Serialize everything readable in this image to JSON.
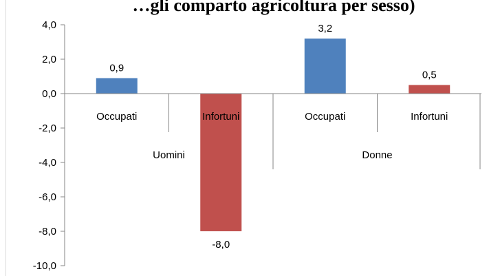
{
  "chart_data": {
    "type": "bar",
    "title": "…gli comparto agricoltura per sesso)",
    "groups": [
      {
        "label": "Uomini",
        "categories": [
          "Occupati",
          "Infortuni"
        ]
      },
      {
        "label": "Donne",
        "categories": [
          "Occupati",
          "Infortuni"
        ]
      }
    ],
    "bars": [
      {
        "group": "Uomini",
        "category": "Occupati",
        "value": 0.9,
        "label": "0,9",
        "color": "#4f81bd"
      },
      {
        "group": "Uomini",
        "category": "Infortuni",
        "value": -8.0,
        "label": "-8,0",
        "color": "#c0504d"
      },
      {
        "group": "Donne",
        "category": "Occupati",
        "value": 3.2,
        "label": "3,2",
        "color": "#4f81bd"
      },
      {
        "group": "Donne",
        "category": "Infortuni",
        "value": 0.5,
        "label": "0,5",
        "color": "#c0504d"
      }
    ],
    "yticks": [
      "4,0",
      "2,0",
      "0,0",
      "-2,0",
      "-4,0",
      "-6,0",
      "-8,0",
      "-10,0"
    ],
    "ylim": [
      -10,
      4
    ],
    "grid": false,
    "legend": "none"
  }
}
